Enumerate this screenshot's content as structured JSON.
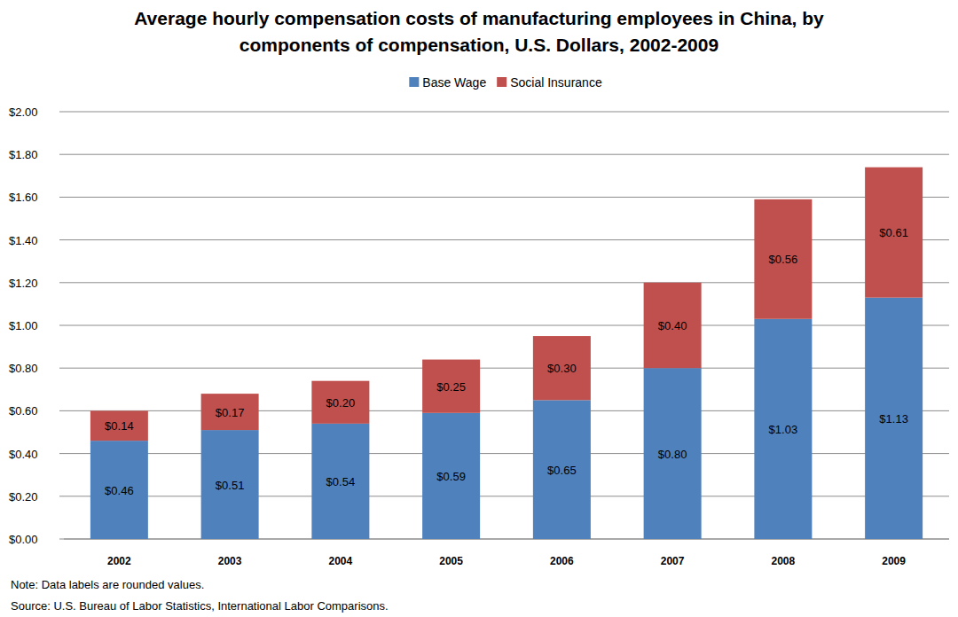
{
  "chart_data": {
    "type": "bar",
    "title": "Average hourly compensation costs of manufacturing employees in China, by components of compensation, U.S. Dollars, 2002-2009",
    "categories": [
      "2002",
      "2003",
      "2004",
      "2005",
      "2006",
      "2007",
      "2008",
      "2009"
    ],
    "series": [
      {
        "name": "Base Wage",
        "color": "#4f81bd",
        "values": [
          0.46,
          0.51,
          0.54,
          0.59,
          0.65,
          0.8,
          1.03,
          1.13
        ],
        "value_labels": [
          "$0.46",
          "$0.51",
          "$0.54",
          "$0.59",
          "$0.65",
          "$0.80",
          "$1.03",
          "$1.13"
        ]
      },
      {
        "name": "Social Insurance",
        "color": "#c0504d",
        "values": [
          0.14,
          0.17,
          0.2,
          0.25,
          0.3,
          0.4,
          0.56,
          0.61
        ],
        "value_labels": [
          "$0.14",
          "$0.17",
          "$0.20",
          "$0.25",
          "$0.30",
          "$0.40",
          "$0.56",
          "$0.61"
        ]
      }
    ],
    "ylim": [
      0,
      2
    ],
    "yticks": [
      {
        "value": 0,
        "label": "$0.00"
      },
      {
        "value": 0.2,
        "label": "$0.20"
      },
      {
        "value": 0.4,
        "label": "$0.40"
      },
      {
        "value": 0.6,
        "label": "$0.60"
      },
      {
        "value": 0.8,
        "label": "$0.80"
      },
      {
        "value": 1,
        "label": "$1.00"
      },
      {
        "value": 1.2,
        "label": "$1.20"
      },
      {
        "value": 1.4,
        "label": "$1.40"
      },
      {
        "value": 1.6,
        "label": "$1.60"
      },
      {
        "value": 1.8,
        "label": "$1.80"
      },
      {
        "value": 2,
        "label": "$2.00"
      }
    ],
    "stacked": true,
    "data_labels": true,
    "grid": true,
    "legend": "top",
    "notes": [
      "Note: Data labels are rounded values.",
      "Source: U.S. Bureau of Labor Statistics, International Labor Comparisons."
    ]
  }
}
